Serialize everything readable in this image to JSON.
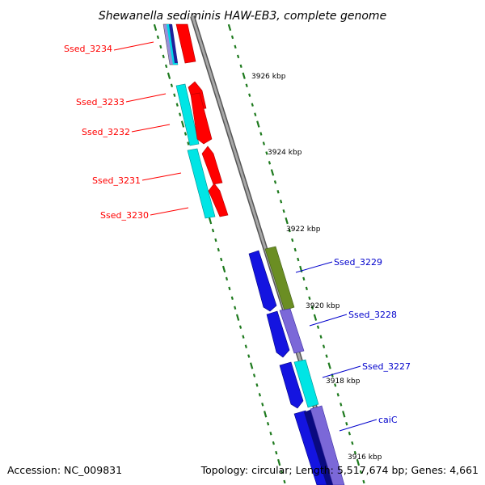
{
  "title": "Shewanella sediminis HAW-EB3, complete genome",
  "footer": {
    "accession": "Accession: NC_009831",
    "summary": "Topology: circular; Length: 5,517,674 bp; Genes: 4,661"
  },
  "colors": {
    "reverse_label": "#ff0000",
    "forward_label": "#0000cc",
    "backbone": "#8a8a8a",
    "tick": "#1e7a1e",
    "cyan": "#00e5e5",
    "red": "#ff0000",
    "blue": "#1414e0",
    "olive": "#6b8e23",
    "lavender": "#7b68d8",
    "navy": "#0a0a80"
  },
  "reverse_genes": [
    {
      "id": "ssed-3234",
      "label": "Ssed_3234"
    },
    {
      "id": "ssed-3233",
      "label": "Ssed_3233"
    },
    {
      "id": "ssed-3232",
      "label": "Ssed_3232"
    },
    {
      "id": "ssed-3231",
      "label": "Ssed_3231"
    },
    {
      "id": "ssed-3230",
      "label": "Ssed_3230"
    }
  ],
  "forward_genes": [
    {
      "id": "ssed-3229",
      "label": "Ssed_3229"
    },
    {
      "id": "ssed-3228",
      "label": "Ssed_3228"
    },
    {
      "id": "ssed-3227",
      "label": "Ssed_3227"
    },
    {
      "id": "caic",
      "label": "caiC"
    }
  ],
  "kbp_ticks": [
    "3926 kbp",
    "3924 kbp",
    "3922 kbp",
    "3920 kbp",
    "3918 kbp",
    "3916 kbp"
  ]
}
